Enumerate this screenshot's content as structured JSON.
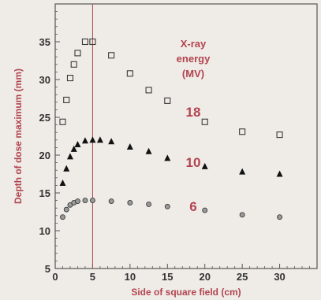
{
  "chart_data": {
    "type": "scatter",
    "title": "",
    "xlabel": "Side of square field (cm)",
    "ylabel": "Depth of dose maximum (mm)",
    "xlim": [
      0,
      35
    ],
    "ylim": [
      5,
      40
    ],
    "x_ticks": [
      0,
      5,
      10,
      15,
      20,
      25,
      30
    ],
    "y_ticks": [
      5,
      10,
      15,
      20,
      25,
      30,
      35
    ],
    "grid": false,
    "legend_title": [
      "X-ray",
      "energy",
      "(MV)"
    ],
    "reference_line_x": 5,
    "series": [
      {
        "name": "18",
        "marker": "square-open",
        "x": [
          1,
          1.5,
          2,
          2.5,
          3,
          4,
          5,
          7.5,
          10,
          12.5,
          15,
          20,
          25,
          30
        ],
        "y": [
          24.4,
          27.3,
          30.2,
          32.0,
          33.5,
          35.0,
          35.0,
          33.2,
          30.8,
          28.6,
          27.2,
          24.4,
          23.1,
          22.7
        ]
      },
      {
        "name": "10",
        "marker": "triangle-filled",
        "x": [
          1,
          1.5,
          2,
          2.5,
          3,
          4,
          5,
          6,
          7.5,
          10,
          12.5,
          15,
          20,
          25,
          30
        ],
        "y": [
          16.3,
          18.2,
          19.8,
          20.8,
          21.4,
          21.9,
          22.0,
          22.0,
          21.8,
          21.1,
          20.5,
          19.6,
          18.5,
          17.8,
          17.5
        ]
      },
      {
        "name": "6",
        "marker": "circle-open",
        "x": [
          1,
          1.5,
          2,
          2.5,
          3,
          4,
          5,
          7.5,
          10,
          12.5,
          15,
          20,
          25,
          30
        ],
        "y": [
          11.8,
          12.8,
          13.4,
          13.7,
          13.9,
          14.0,
          14.0,
          13.9,
          13.7,
          13.5,
          13.2,
          12.7,
          12.1,
          11.8
        ]
      }
    ]
  },
  "colors": {
    "background": "#efece7",
    "axis": "#555555",
    "label_red": "#b2434f",
    "marker": "#3a3a3a"
  }
}
